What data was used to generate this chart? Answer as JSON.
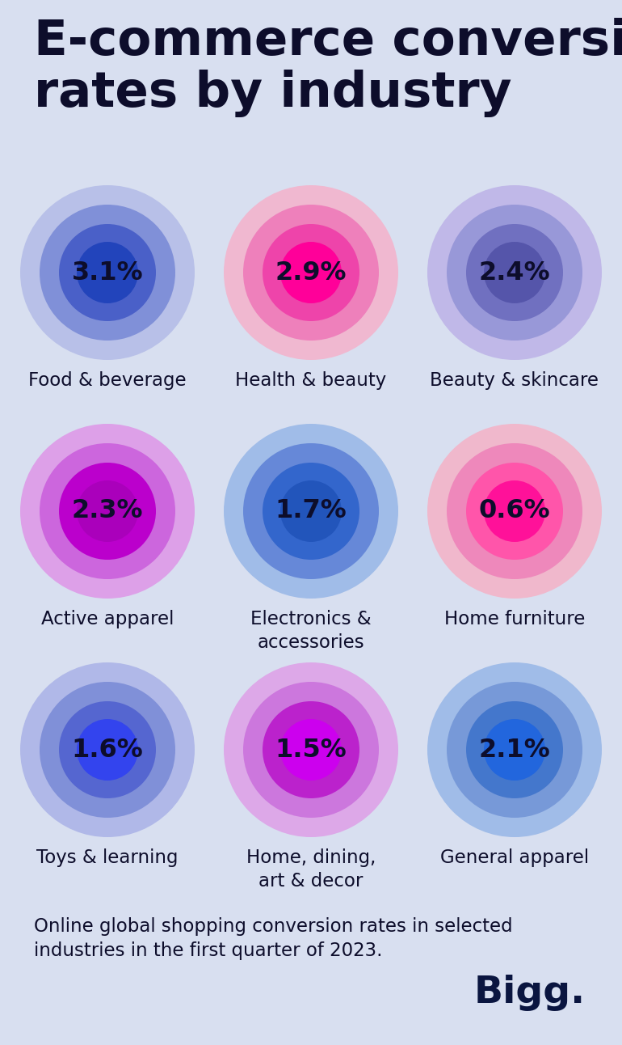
{
  "title": "E-commerce conversion\nrates by industry",
  "background_color": "#d8dff0",
  "title_color": "#0d0d2b",
  "subtitle": "Online global shopping conversion rates in selected\nindustries in the first quarter of 2023.",
  "brand": "Bigg.",
  "items": [
    {
      "label": "Food & beverage",
      "value": "3.1%",
      "colors": [
        "#b8c0e8",
        "#8090d8",
        "#4a60c8",
        "#2244bb"
      ],
      "text_color": "#0d0d2b"
    },
    {
      "label": "Health & beauty",
      "value": "2.9%",
      "colors": [
        "#f0b8d0",
        "#ee80bb",
        "#ee44aa",
        "#ff0099"
      ],
      "text_color": "#0d0d2b"
    },
    {
      "label": "Beauty & skincare",
      "value": "2.4%",
      "colors": [
        "#c0b8e8",
        "#9898d8",
        "#7070c0",
        "#5555aa"
      ],
      "text_color": "#0d0d2b"
    },
    {
      "label": "Active apparel",
      "value": "2.3%",
      "colors": [
        "#dda0e8",
        "#cc66dd",
        "#bb00cc",
        "#aa00bb"
      ],
      "text_color": "#0d0d2b"
    },
    {
      "label": "Electronics &\naccessories",
      "value": "1.7%",
      "colors": [
        "#a0bce8",
        "#6688d8",
        "#3366cc",
        "#2255bb"
      ],
      "text_color": "#0d0d2b"
    },
    {
      "label": "Home furniture",
      "value": "0.6%",
      "colors": [
        "#f0b8cc",
        "#ee88bb",
        "#ff55aa",
        "#ff1199"
      ],
      "text_color": "#0d0d2b"
    },
    {
      "label": "Toys & learning",
      "value": "1.6%",
      "colors": [
        "#b0b8e8",
        "#8090d8",
        "#5566d0",
        "#3344ee"
      ],
      "text_color": "#0d0d2b"
    },
    {
      "label": "Home, dining,\nart & decor",
      "value": "1.5%",
      "colors": [
        "#dda8e8",
        "#cc77dd",
        "#bb22cc",
        "#cc00ee"
      ],
      "text_color": "#0d0d2b"
    },
    {
      "label": "General apparel",
      "value": "2.1%",
      "colors": [
        "#a0bce8",
        "#7799d8",
        "#4477cc",
        "#2266dd"
      ],
      "text_color": "#0d0d2b"
    }
  ]
}
